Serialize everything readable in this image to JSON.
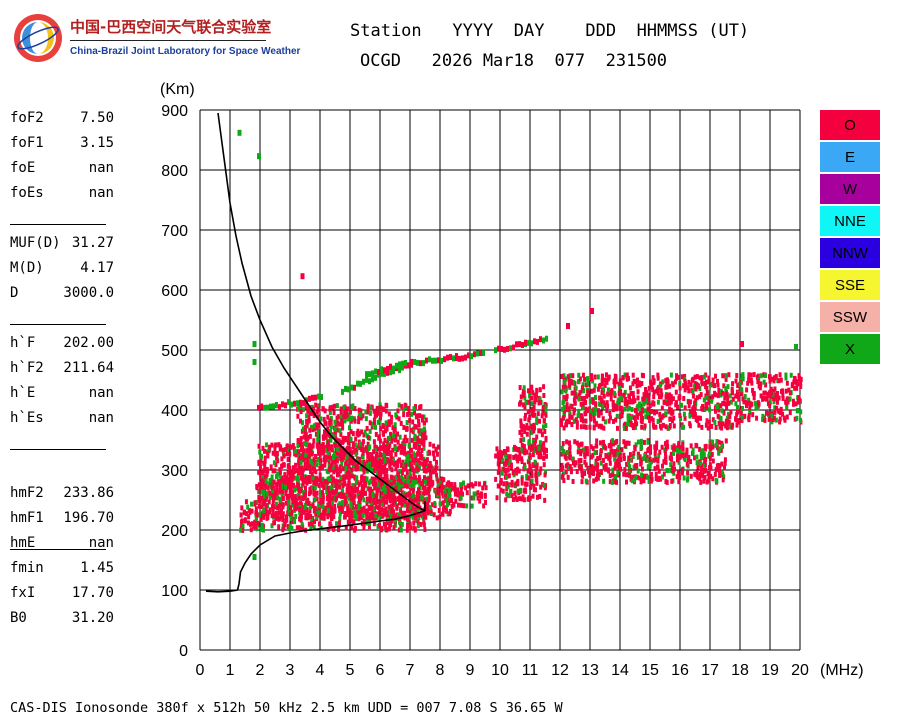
{
  "logo": {
    "cn": "中国-巴西空间天气联合实验室",
    "en": "China-Brazil Joint Laboratory for Space Weather"
  },
  "header": {
    "row1": "Station   YYYY  DAY    DDD  HHMMSS (UT)",
    "row2": "OCGD   2026 Mar18  077  231500"
  },
  "params": [
    {
      "name": "foF2",
      "value": "7.50"
    },
    {
      "name": "foF1",
      "value": "3.15"
    },
    {
      "name": "foE",
      "value": "nan"
    },
    {
      "name": "foEs",
      "value": "nan"
    },
    {
      "name": "MUF(D)",
      "value": "31.27"
    },
    {
      "name": "M(D)",
      "value": "4.17"
    },
    {
      "name": "D",
      "value": "3000.0"
    },
    {
      "name": "h`F",
      "value": "202.00"
    },
    {
      "name": "h`F2",
      "value": "211.64"
    },
    {
      "name": "h`E",
      "value": "nan"
    },
    {
      "name": "h`Es",
      "value": "nan"
    },
    {
      "name": "hmF2",
      "value": "233.86"
    },
    {
      "name": "hmF1",
      "value": "196.70"
    },
    {
      "name": "hmE",
      "value": "nan"
    },
    {
      "name": "fmin",
      "value": "1.45"
    },
    {
      "name": "fxI",
      "value": "17.70"
    },
    {
      "name": "B0",
      "value": "31.20"
    }
  ],
  "legend": [
    {
      "label": "O",
      "color": "#f5003f"
    },
    {
      "label": "E",
      "color": "#3aa8f5"
    },
    {
      "label": "W",
      "color": "#a8009c"
    },
    {
      "label": "NNE",
      "color": "#10f5f5"
    },
    {
      "label": "NNW",
      "color": "#2a00e0"
    },
    {
      "label": "SSE",
      "color": "#f5f530"
    },
    {
      "label": "SSW",
      "color": "#f5b0a8"
    },
    {
      "label": "X",
      "color": "#10a818"
    }
  ],
  "footer": "CAS-DIS Ionosonde 380f x 512h 50 kHz 2.5 km UDD = 007 7.08 S 36.65 W",
  "chart_data": {
    "type": "scatter",
    "xlabel": "(MHz)",
    "ylabel": "(Km)",
    "xlim": [
      0,
      20
    ],
    "ylim": [
      0,
      900
    ],
    "xticks": [
      "0",
      "1",
      "2",
      "3",
      "4",
      "5",
      "6",
      "7",
      "8",
      "9",
      "10",
      "11",
      "12",
      "13",
      "14",
      "15",
      "16",
      "17",
      "18",
      "19",
      "20"
    ],
    "yticks": [
      "0",
      "100",
      "200",
      "300",
      "400",
      "500",
      "600",
      "700",
      "800",
      "900"
    ],
    "grid": true,
    "ordinary_color": "#f5003f",
    "extraordinary_color": "#10a818",
    "trace_color": "#000000",
    "echo_regions": [
      {
        "x0": 1.3,
        "x1": 7.6,
        "y0": 200,
        "y1": 250
      },
      {
        "x0": 1.8,
        "x1": 8.3,
        "y0": 220,
        "y1": 290
      },
      {
        "x0": 1.9,
        "x1": 7.9,
        "y0": 250,
        "y1": 345
      },
      {
        "x0": 3.2,
        "x1": 7.5,
        "y0": 300,
        "y1": 410
      },
      {
        "x0": 8.0,
        "x1": 9.5,
        "y0": 240,
        "y1": 280
      },
      {
        "x0": 9.8,
        "x1": 11.5,
        "y0": 250,
        "y1": 340
      },
      {
        "x0": 10.6,
        "x1": 11.5,
        "y0": 330,
        "y1": 440
      },
      {
        "x0": 12.0,
        "x1": 18.0,
        "y0": 370,
        "y1": 460
      },
      {
        "x0": 12.0,
        "x1": 17.5,
        "y0": 280,
        "y1": 350
      },
      {
        "x0": 18.0,
        "x1": 20.0,
        "y0": 380,
        "y1": 460
      }
    ],
    "echo_lines": [
      {
        "x": [
          1.9,
          2.5,
          3.5,
          4.0
        ],
        "y": [
          403,
          407,
          415,
          422
        ]
      },
      {
        "x": [
          4.7,
          6.0,
          7.0
        ],
        "y": [
          430,
          460,
          475
        ]
      },
      {
        "x": [
          5.5,
          7.0,
          8.5,
          9.4
        ],
        "y": [
          460,
          478,
          487,
          493
        ]
      },
      {
        "x": [
          9.8,
          10.8,
          11.5
        ],
        "y": [
          500,
          510,
          520
        ]
      }
    ],
    "isolated_points": [
      {
        "x": 1.25,
        "y": 862,
        "c": "X"
      },
      {
        "x": 1.9,
        "y": 823,
        "c": "X"
      },
      {
        "x": 3.35,
        "y": 623,
        "c": "O"
      },
      {
        "x": 13.0,
        "y": 565,
        "c": "O"
      },
      {
        "x": 12.2,
        "y": 540,
        "c": "O"
      },
      {
        "x": 1.75,
        "y": 510,
        "c": "X"
      },
      {
        "x": 1.75,
        "y": 480,
        "c": "X"
      },
      {
        "x": 18.0,
        "y": 510,
        "c": "O"
      },
      {
        "x": 19.8,
        "y": 505,
        "c": "X"
      },
      {
        "x": 1.75,
        "y": 155,
        "c": "X"
      }
    ],
    "true_height_profile": {
      "x": [
        0.6,
        0.8,
        1.0,
        1.2,
        1.4,
        1.7,
        2.0,
        2.4,
        2.8,
        3.2,
        3.6,
        4.0,
        4.4,
        4.8,
        5.2,
        5.6,
        6.0,
        6.4,
        6.8,
        7.2,
        7.5
      ],
      "y": [
        895,
        820,
        745,
        690,
        645,
        590,
        550,
        505,
        470,
        440,
        410,
        380,
        355,
        335,
        315,
        300,
        285,
        270,
        255,
        240,
        232
      ]
    },
    "virtual_height_trace": {
      "x": [
        0.2,
        0.6,
        1.0,
        1.25,
        1.3,
        1.35,
        1.5,
        1.7,
        2.0,
        2.5,
        3.0,
        3.5,
        4.0,
        5.0,
        6.0,
        6.5,
        7.0,
        7.5
      ],
      "y": [
        98,
        97,
        98,
        100,
        110,
        130,
        145,
        160,
        175,
        190,
        195,
        199,
        202,
        208,
        215,
        218,
        224,
        232
      ]
    },
    "right_edge": {
      "x": [
        7.5,
        7.5
      ],
      "y": [
        232,
        248
      ]
    }
  }
}
